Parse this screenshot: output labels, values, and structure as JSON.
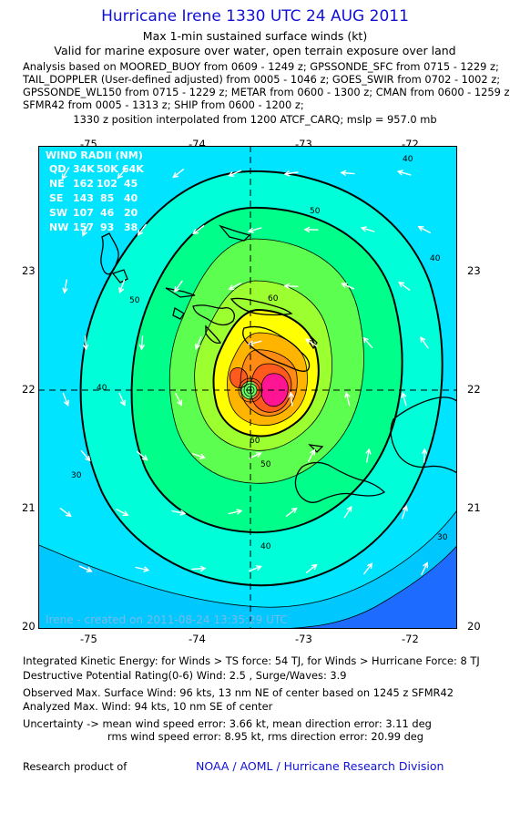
{
  "header": {
    "title": "Hurricane Irene 1330 UTC 24 AUG 2011",
    "subtitle": "Max 1-min sustained surface winds (kt)",
    "validity": "Valid for marine exposure over water, open terrain exposure over land",
    "analysis_lines": [
      "Analysis based on MOORED_BUOY from 0609 - 1249 z; GPSSONDE_SFC from 0715 - 1229 z;",
      "TAIL_DOPPLER (User-defined adjusted) from 0005 - 1046 z; GOES_SWIR from 0702 - 1002 z;",
      "GPSSONDE_WL150 from 0715 - 1229 z; METAR from 0600 - 1300 z; CMAN from 0600 - 1259 z;",
      "SFMR42 from 0005 - 1313 z; SHIP from 0600 - 1200 z;"
    ],
    "position_note": "1330 z position interpolated from 1200 ATCF_CARQ; mslp = 957.0 mb"
  },
  "map": {
    "lon_ticks": [
      "-75",
      "-74",
      "-73",
      "-72"
    ],
    "lat_ticks": [
      "23",
      "22",
      "21",
      "20"
    ],
    "lon_range": [
      -75.45,
      -71.55
    ],
    "lat_range": [
      19.95,
      23.95
    ],
    "center": {
      "lon": -73.55,
      "lat": 21.98
    },
    "contour_labels": [
      "40",
      "50",
      "60",
      "50",
      "40",
      "40",
      "50",
      "30",
      "40",
      "30",
      "60"
    ],
    "wind_radii": {
      "title": "WIND RADII (NM)",
      "columns": [
        "QD",
        "34K",
        "50K",
        "64K"
      ],
      "rows": [
        [
          "NE",
          "162",
          "102",
          "45"
        ],
        [
          "SE",
          "143",
          "85",
          "40"
        ],
        [
          "SW",
          "107",
          "46",
          "20"
        ],
        [
          "NW",
          "157",
          "93",
          "38"
        ]
      ]
    },
    "watermark": "Irene - created on 2011-08-24 13:35:29 UTC",
    "colors": {
      "ocean_far": "#1e6cff",
      "band_30": "#00c8ff",
      "band_40": "#00ffd8",
      "band_50": "#00ff8a",
      "band_60": "#84ff3c",
      "band_70": "#ffff00",
      "band_80": "#ffb400",
      "band_90": "#ff5a1e",
      "band_100": "#ff1493"
    }
  },
  "footer": {
    "ike": "Integrated Kinetic Energy:  for Winds > TS force: 54 TJ,  for Winds > Hurricane Force: 8 TJ",
    "dpr": "Destructive Potential Rating(0-6)   Wind: 2.5 , Surge/Waves: 3.9",
    "observed": "Observed Max. Surface Wind: 96 kts, 13 nm NE of center based on 1245 z SFMR42",
    "analyzed": "Analyzed Max. Wind: 94 kts, 10 nm SE of center",
    "uncertainty_1": "Uncertainty -> mean wind speed error: 3.66 kt,   mean direction error: 3.11 deg",
    "uncertainty_2": "rms wind speed error: 8.95 kt,   rms direction error: 20.99 deg",
    "research": "Research product of",
    "credit": "NOAA / AOML / Hurricane Research Division"
  }
}
